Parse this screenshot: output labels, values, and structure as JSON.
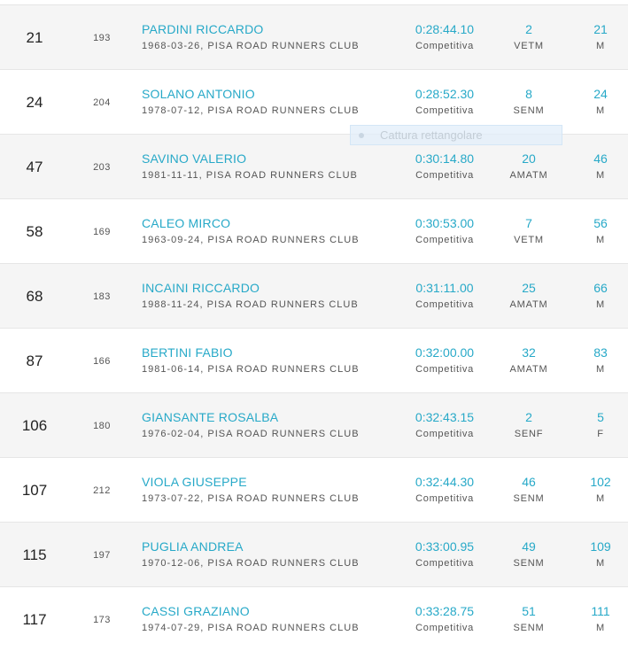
{
  "results": [
    {
      "pos": "21",
      "bib": "193",
      "name": "PARDINI RICCARDO",
      "meta": "1968-03-26, PISA ROAD RUNNERS CLUB",
      "time": "0:28:44.10",
      "type": "Competitiva",
      "cat_pos": "2",
      "cat": "VETM",
      "sex_pos": "21",
      "sex": "M"
    },
    {
      "pos": "24",
      "bib": "204",
      "name": "SOLANO ANTONIO",
      "meta": "1978-07-12, PISA ROAD RUNNERS CLUB",
      "time": "0:28:52.30",
      "type": "Competitiva",
      "cat_pos": "8",
      "cat": "SENM",
      "sex_pos": "24",
      "sex": "M"
    },
    {
      "pos": "47",
      "bib": "203",
      "name": "SAVINO VALERIO",
      "meta": "1981-11-11, PISA ROAD RUNNERS CLUB",
      "time": "0:30:14.80",
      "type": "Competitiva",
      "cat_pos": "20",
      "cat": "AMATM",
      "sex_pos": "46",
      "sex": "M"
    },
    {
      "pos": "58",
      "bib": "169",
      "name": "CALEO MIRCO",
      "meta": "1963-09-24, PISA ROAD RUNNERS CLUB",
      "time": "0:30:53.00",
      "type": "Competitiva",
      "cat_pos": "7",
      "cat": "VETM",
      "sex_pos": "56",
      "sex": "M"
    },
    {
      "pos": "68",
      "bib": "183",
      "name": "INCAINI RICCARDO",
      "meta": "1988-11-24, PISA ROAD RUNNERS CLUB",
      "time": "0:31:11.00",
      "type": "Competitiva",
      "cat_pos": "25",
      "cat": "AMATM",
      "sex_pos": "66",
      "sex": "M"
    },
    {
      "pos": "87",
      "bib": "166",
      "name": "BERTINI FABIO",
      "meta": "1981-06-14, PISA ROAD RUNNERS CLUB",
      "time": "0:32:00.00",
      "type": "Competitiva",
      "cat_pos": "32",
      "cat": "AMATM",
      "sex_pos": "83",
      "sex": "M"
    },
    {
      "pos": "106",
      "bib": "180",
      "name": "GIANSANTE ROSALBA",
      "meta": "1976-02-04, PISA ROAD RUNNERS CLUB",
      "time": "0:32:43.15",
      "type": "Competitiva",
      "cat_pos": "2",
      "cat": "SENF",
      "sex_pos": "5",
      "sex": "F"
    },
    {
      "pos": "107",
      "bib": "212",
      "name": "VIOLA GIUSEPPE",
      "meta": "1973-07-22, PISA ROAD RUNNERS CLUB",
      "time": "0:32:44.30",
      "type": "Competitiva",
      "cat_pos": "46",
      "cat": "SENM",
      "sex_pos": "102",
      "sex": "M"
    },
    {
      "pos": "115",
      "bib": "197",
      "name": "PUGLIA ANDREA",
      "meta": "1970-12-06, PISA ROAD RUNNERS CLUB",
      "time": "0:33:00.95",
      "type": "Competitiva",
      "cat_pos": "49",
      "cat": "SENM",
      "sex_pos": "109",
      "sex": "M"
    },
    {
      "pos": "117",
      "bib": "173",
      "name": "CASSI GRAZIANO",
      "meta": "1974-07-29, PISA ROAD RUNNERS CLUB",
      "time": "0:33:28.75",
      "type": "Competitiva",
      "cat_pos": "51",
      "cat": "SENM",
      "sex_pos": "111",
      "sex": "M"
    }
  ],
  "overlay": {
    "capture_label": "Cattura rettangolare"
  },
  "colors": {
    "accent": "#27a9c8",
    "row_alt": "#f5f5f5",
    "text": "#555555"
  }
}
